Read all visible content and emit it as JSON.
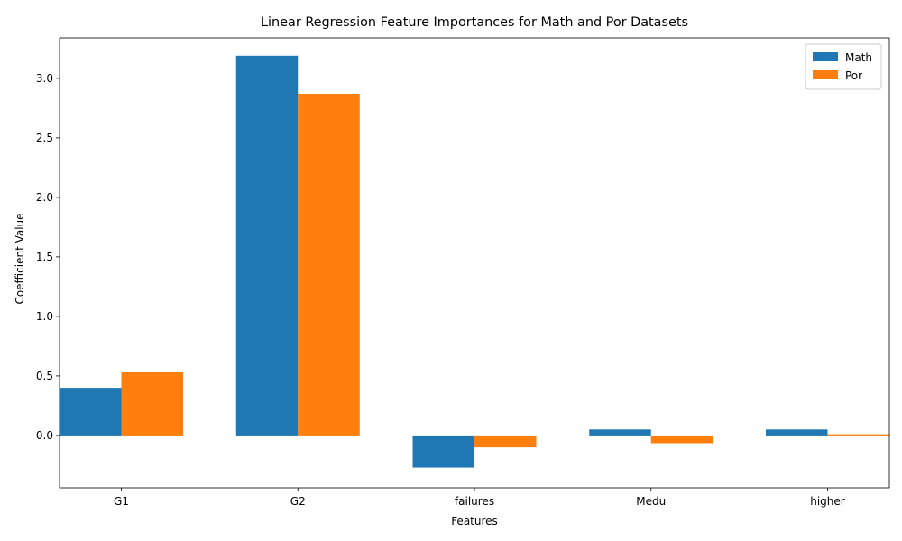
{
  "chart_data": {
    "type": "bar",
    "title": "Linear Regression Feature Importances for Math and Por Datasets",
    "xlabel": "Features",
    "ylabel": "Coefficient Value",
    "categories": [
      "G1",
      "G2",
      "failures",
      "Medu",
      "higher"
    ],
    "series": [
      {
        "name": "Math",
        "color": "#1f77b4",
        "values": [
          0.4,
          3.19,
          -0.27,
          0.05,
          0.05
        ]
      },
      {
        "name": "Por",
        "color": "#ff7f0e",
        "values": [
          0.53,
          2.87,
          -0.1,
          -0.065,
          0.01
        ]
      }
    ],
    "ylim": [
      -0.44,
      3.34
    ],
    "yticks": [
      0.0,
      0.5,
      1.0,
      1.5,
      2.0,
      2.5,
      3.0
    ],
    "ytick_labels": [
      "0.0",
      "0.5",
      "1.0",
      "1.5",
      "2.0",
      "2.5",
      "3.0"
    ],
    "grid": false,
    "legend_position": "top-right"
  }
}
